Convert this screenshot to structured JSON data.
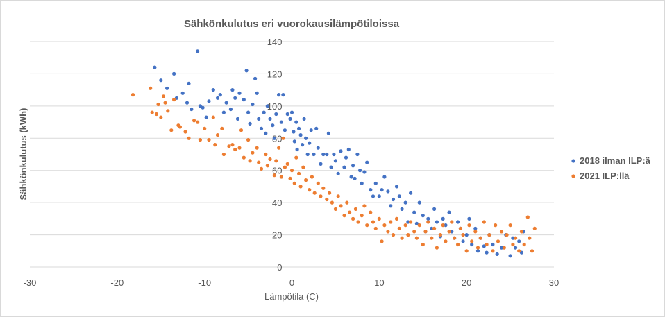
{
  "chart_data": {
    "type": "scatter",
    "title": "Sähkönkulutus eri vuorokausilämpötiloissa",
    "xlabel": "Lämpötila (C)",
    "ylabel": "Sähkönkulutus (kWh)",
    "xlim": [
      -30,
      30
    ],
    "ylim": [
      0,
      140
    ],
    "xticks": [
      "-30",
      "-20",
      "-10",
      "0",
      "10",
      "20",
      "30"
    ],
    "yticks": [
      "0",
      "20",
      "40",
      "60",
      "80",
      "100",
      "120",
      "140"
    ],
    "grid": "horizontal",
    "legend_position": "right",
    "series": [
      {
        "name": "2018 ilman ILP:ä",
        "color": "#4472C4",
        "points": [
          [
            -15.7,
            124
          ],
          [
            -15,
            116
          ],
          [
            -14.3,
            111
          ],
          [
            -13.5,
            120
          ],
          [
            -13.2,
            105
          ],
          [
            -12.5,
            108
          ],
          [
            -12,
            102
          ],
          [
            -11.8,
            114
          ],
          [
            -11.5,
            98
          ],
          [
            -10.8,
            134
          ],
          [
            -10.5,
            100
          ],
          [
            -10.2,
            99
          ],
          [
            -9.8,
            93
          ],
          [
            -9.5,
            103
          ],
          [
            -9,
            110
          ],
          [
            -8.5,
            105
          ],
          [
            -8.2,
            107
          ],
          [
            -7.8,
            96
          ],
          [
            -7.5,
            102
          ],
          [
            -7,
            98
          ],
          [
            -6.8,
            110
          ],
          [
            -6.5,
            105
          ],
          [
            -6.2,
            92
          ],
          [
            -6,
            108
          ],
          [
            -5.5,
            104
          ],
          [
            -5.2,
            122
          ],
          [
            -5,
            96
          ],
          [
            -4.8,
            89
          ],
          [
            -4.5,
            101
          ],
          [
            -4.2,
            117
          ],
          [
            -4,
            108
          ],
          [
            -3.8,
            92
          ],
          [
            -3.5,
            86
          ],
          [
            -3.2,
            96
          ],
          [
            -3,
            83
          ],
          [
            -2.8,
            100
          ],
          [
            -2.5,
            92
          ],
          [
            -2.2,
            88
          ],
          [
            -2,
            80
          ],
          [
            -1.8,
            95
          ],
          [
            -1.5,
            107
          ],
          [
            -1.2,
            90
          ],
          [
            -1,
            107
          ],
          [
            -0.8,
            85
          ],
          [
            -0.5,
            95
          ],
          [
            -0.2,
            92
          ],
          [
            0,
            96
          ],
          [
            0.2,
            84
          ],
          [
            0.3,
            78
          ],
          [
            0.5,
            90
          ],
          [
            0.6,
            73
          ],
          [
            0.8,
            86
          ],
          [
            1,
            82
          ],
          [
            1.2,
            76
          ],
          [
            1.4,
            92
          ],
          [
            1.6,
            80
          ],
          [
            1.8,
            70
          ],
          [
            2,
            77
          ],
          [
            2.2,
            85
          ],
          [
            2.5,
            70
          ],
          [
            2.8,
            86
          ],
          [
            3,
            74
          ],
          [
            3.3,
            64
          ],
          [
            3.6,
            70
          ],
          [
            4,
            70
          ],
          [
            4.2,
            83
          ],
          [
            4.5,
            62
          ],
          [
            4.8,
            70
          ],
          [
            5,
            66
          ],
          [
            5.3,
            58
          ],
          [
            5.6,
            72
          ],
          [
            6,
            62
          ],
          [
            6.2,
            68
          ],
          [
            6.5,
            73
          ],
          [
            6.8,
            56
          ],
          [
            7,
            63
          ],
          [
            7.2,
            55
          ],
          [
            7.5,
            70
          ],
          [
            7.8,
            60
          ],
          [
            8,
            52
          ],
          [
            8.3,
            59
          ],
          [
            8.6,
            65
          ],
          [
            9,
            48
          ],
          [
            9.3,
            44
          ],
          [
            9.6,
            52
          ],
          [
            10,
            44
          ],
          [
            10.3,
            48
          ],
          [
            10.6,
            56
          ],
          [
            11,
            47
          ],
          [
            11.3,
            38
          ],
          [
            11.6,
            42
          ],
          [
            12,
            50
          ],
          [
            12.3,
            44
          ],
          [
            12.6,
            36
          ],
          [
            13,
            40
          ],
          [
            13.3,
            28
          ],
          [
            13.6,
            46
          ],
          [
            14,
            34
          ],
          [
            14.3,
            27
          ],
          [
            14.6,
            40
          ],
          [
            15,
            32
          ],
          [
            15.3,
            22
          ],
          [
            15.6,
            30
          ],
          [
            16,
            24
          ],
          [
            16.3,
            36
          ],
          [
            16.6,
            28
          ],
          [
            17,
            19
          ],
          [
            17.3,
            30
          ],
          [
            17.6,
            26
          ],
          [
            18,
            34
          ],
          [
            18.3,
            22
          ],
          [
            18.6,
            18
          ],
          [
            19,
            28
          ],
          [
            19.3,
            24
          ],
          [
            19.6,
            16
          ],
          [
            20,
            20
          ],
          [
            20.3,
            30
          ],
          [
            20.6,
            14
          ],
          [
            21,
            24
          ],
          [
            21.3,
            10
          ],
          [
            21.6,
            18
          ],
          [
            22,
            13
          ],
          [
            22.3,
            9
          ],
          [
            22.6,
            20
          ],
          [
            23,
            14
          ],
          [
            23.5,
            8
          ],
          [
            24,
            12
          ],
          [
            24.5,
            20
          ],
          [
            25,
            7
          ],
          [
            25.3,
            18
          ],
          [
            25.6,
            12
          ],
          [
            26,
            16
          ],
          [
            26.3,
            9
          ],
          [
            26.5,
            22
          ]
        ]
      },
      {
        "name": "2021 ILP:llä",
        "color": "#ED7D31",
        "points": [
          [
            -18.2,
            107
          ],
          [
            -16.2,
            111
          ],
          [
            -16,
            96
          ],
          [
            -15.5,
            95
          ],
          [
            -15.3,
            101
          ],
          [
            -15,
            93
          ],
          [
            -14.7,
            106
          ],
          [
            -14.5,
            102
          ],
          [
            -14.2,
            97
          ],
          [
            -13.8,
            85
          ],
          [
            -13.5,
            104
          ],
          [
            -13,
            88
          ],
          [
            -12.8,
            87
          ],
          [
            -12.2,
            84
          ],
          [
            -11.8,
            80
          ],
          [
            -11.2,
            91
          ],
          [
            -10.8,
            90
          ],
          [
            -10.5,
            79
          ],
          [
            -10,
            86
          ],
          [
            -9.5,
            79
          ],
          [
            -9,
            93
          ],
          [
            -8.8,
            76
          ],
          [
            -8.5,
            82
          ],
          [
            -8,
            86
          ],
          [
            -7.8,
            70
          ],
          [
            -7.2,
            75
          ],
          [
            -6.8,
            76
          ],
          [
            -6.5,
            73
          ],
          [
            -6,
            74
          ],
          [
            -5.8,
            85
          ],
          [
            -5.5,
            68
          ],
          [
            -5,
            79
          ],
          [
            -4.8,
            66
          ],
          [
            -4.5,
            71
          ],
          [
            -4,
            74
          ],
          [
            -3.8,
            65
          ],
          [
            -3.5,
            61
          ],
          [
            -3,
            70
          ],
          [
            -2.8,
            63
          ],
          [
            -2.5,
            67
          ],
          [
            -2,
            57
          ],
          [
            -1.8,
            66
          ],
          [
            -1.5,
            74
          ],
          [
            -1.2,
            56
          ],
          [
            -1,
            80
          ],
          [
            -0.8,
            62
          ],
          [
            -0.5,
            64
          ],
          [
            -0.2,
            55
          ],
          [
            0,
            60
          ],
          [
            0.3,
            52
          ],
          [
            0.5,
            68
          ],
          [
            0.8,
            58
          ],
          [
            1,
            50
          ],
          [
            1.3,
            62
          ],
          [
            1.6,
            54
          ],
          [
            2,
            48
          ],
          [
            2.3,
            56
          ],
          [
            2.6,
            46
          ],
          [
            3,
            52
          ],
          [
            3.3,
            44
          ],
          [
            3.6,
            49
          ],
          [
            4,
            42
          ],
          [
            4.3,
            46
          ],
          [
            4.6,
            40
          ],
          [
            5,
            36
          ],
          [
            5.3,
            44
          ],
          [
            5.6,
            38
          ],
          [
            6,
            32
          ],
          [
            6.3,
            40
          ],
          [
            6.6,
            34
          ],
          [
            7,
            30
          ],
          [
            7.3,
            36
          ],
          [
            7.6,
            28
          ],
          [
            8,
            32
          ],
          [
            8.3,
            38
          ],
          [
            8.6,
            26
          ],
          [
            9,
            34
          ],
          [
            9.3,
            28
          ],
          [
            9.6,
            24
          ],
          [
            10,
            30
          ],
          [
            10.3,
            16
          ],
          [
            10.6,
            26
          ],
          [
            11,
            22
          ],
          [
            11.3,
            28
          ],
          [
            11.6,
            20
          ],
          [
            12,
            30
          ],
          [
            12.3,
            24
          ],
          [
            12.6,
            18
          ],
          [
            13,
            26
          ],
          [
            13.3,
            20
          ],
          [
            13.6,
            28
          ],
          [
            14,
            22
          ],
          [
            14.3,
            18
          ],
          [
            14.6,
            26
          ],
          [
            15,
            14
          ],
          [
            15.3,
            22
          ],
          [
            15.6,
            28
          ],
          [
            16,
            18
          ],
          [
            16.3,
            24
          ],
          [
            16.6,
            12
          ],
          [
            17,
            20
          ],
          [
            17.3,
            26
          ],
          [
            17.6,
            16
          ],
          [
            18,
            22
          ],
          [
            18.3,
            28
          ],
          [
            18.6,
            18
          ],
          [
            19,
            14
          ],
          [
            19.3,
            24
          ],
          [
            19.6,
            20
          ],
          [
            20,
            10
          ],
          [
            20.3,
            26
          ],
          [
            20.6,
            16
          ],
          [
            21,
            22
          ],
          [
            21.3,
            12
          ],
          [
            21.6,
            18
          ],
          [
            22,
            28
          ],
          [
            22.3,
            14
          ],
          [
            22.6,
            20
          ],
          [
            23,
            10
          ],
          [
            23.3,
            26
          ],
          [
            23.6,
            16
          ],
          [
            24,
            22
          ],
          [
            24.3,
            12
          ],
          [
            24.6,
            20
          ],
          [
            25,
            26
          ],
          [
            25.3,
            14
          ],
          [
            25.6,
            18
          ],
          [
            26,
            10
          ],
          [
            26.3,
            22
          ],
          [
            26.6,
            14
          ],
          [
            27,
            31
          ],
          [
            27.2,
            18
          ],
          [
            27.5,
            10
          ],
          [
            27.8,
            24
          ]
        ]
      }
    ]
  }
}
